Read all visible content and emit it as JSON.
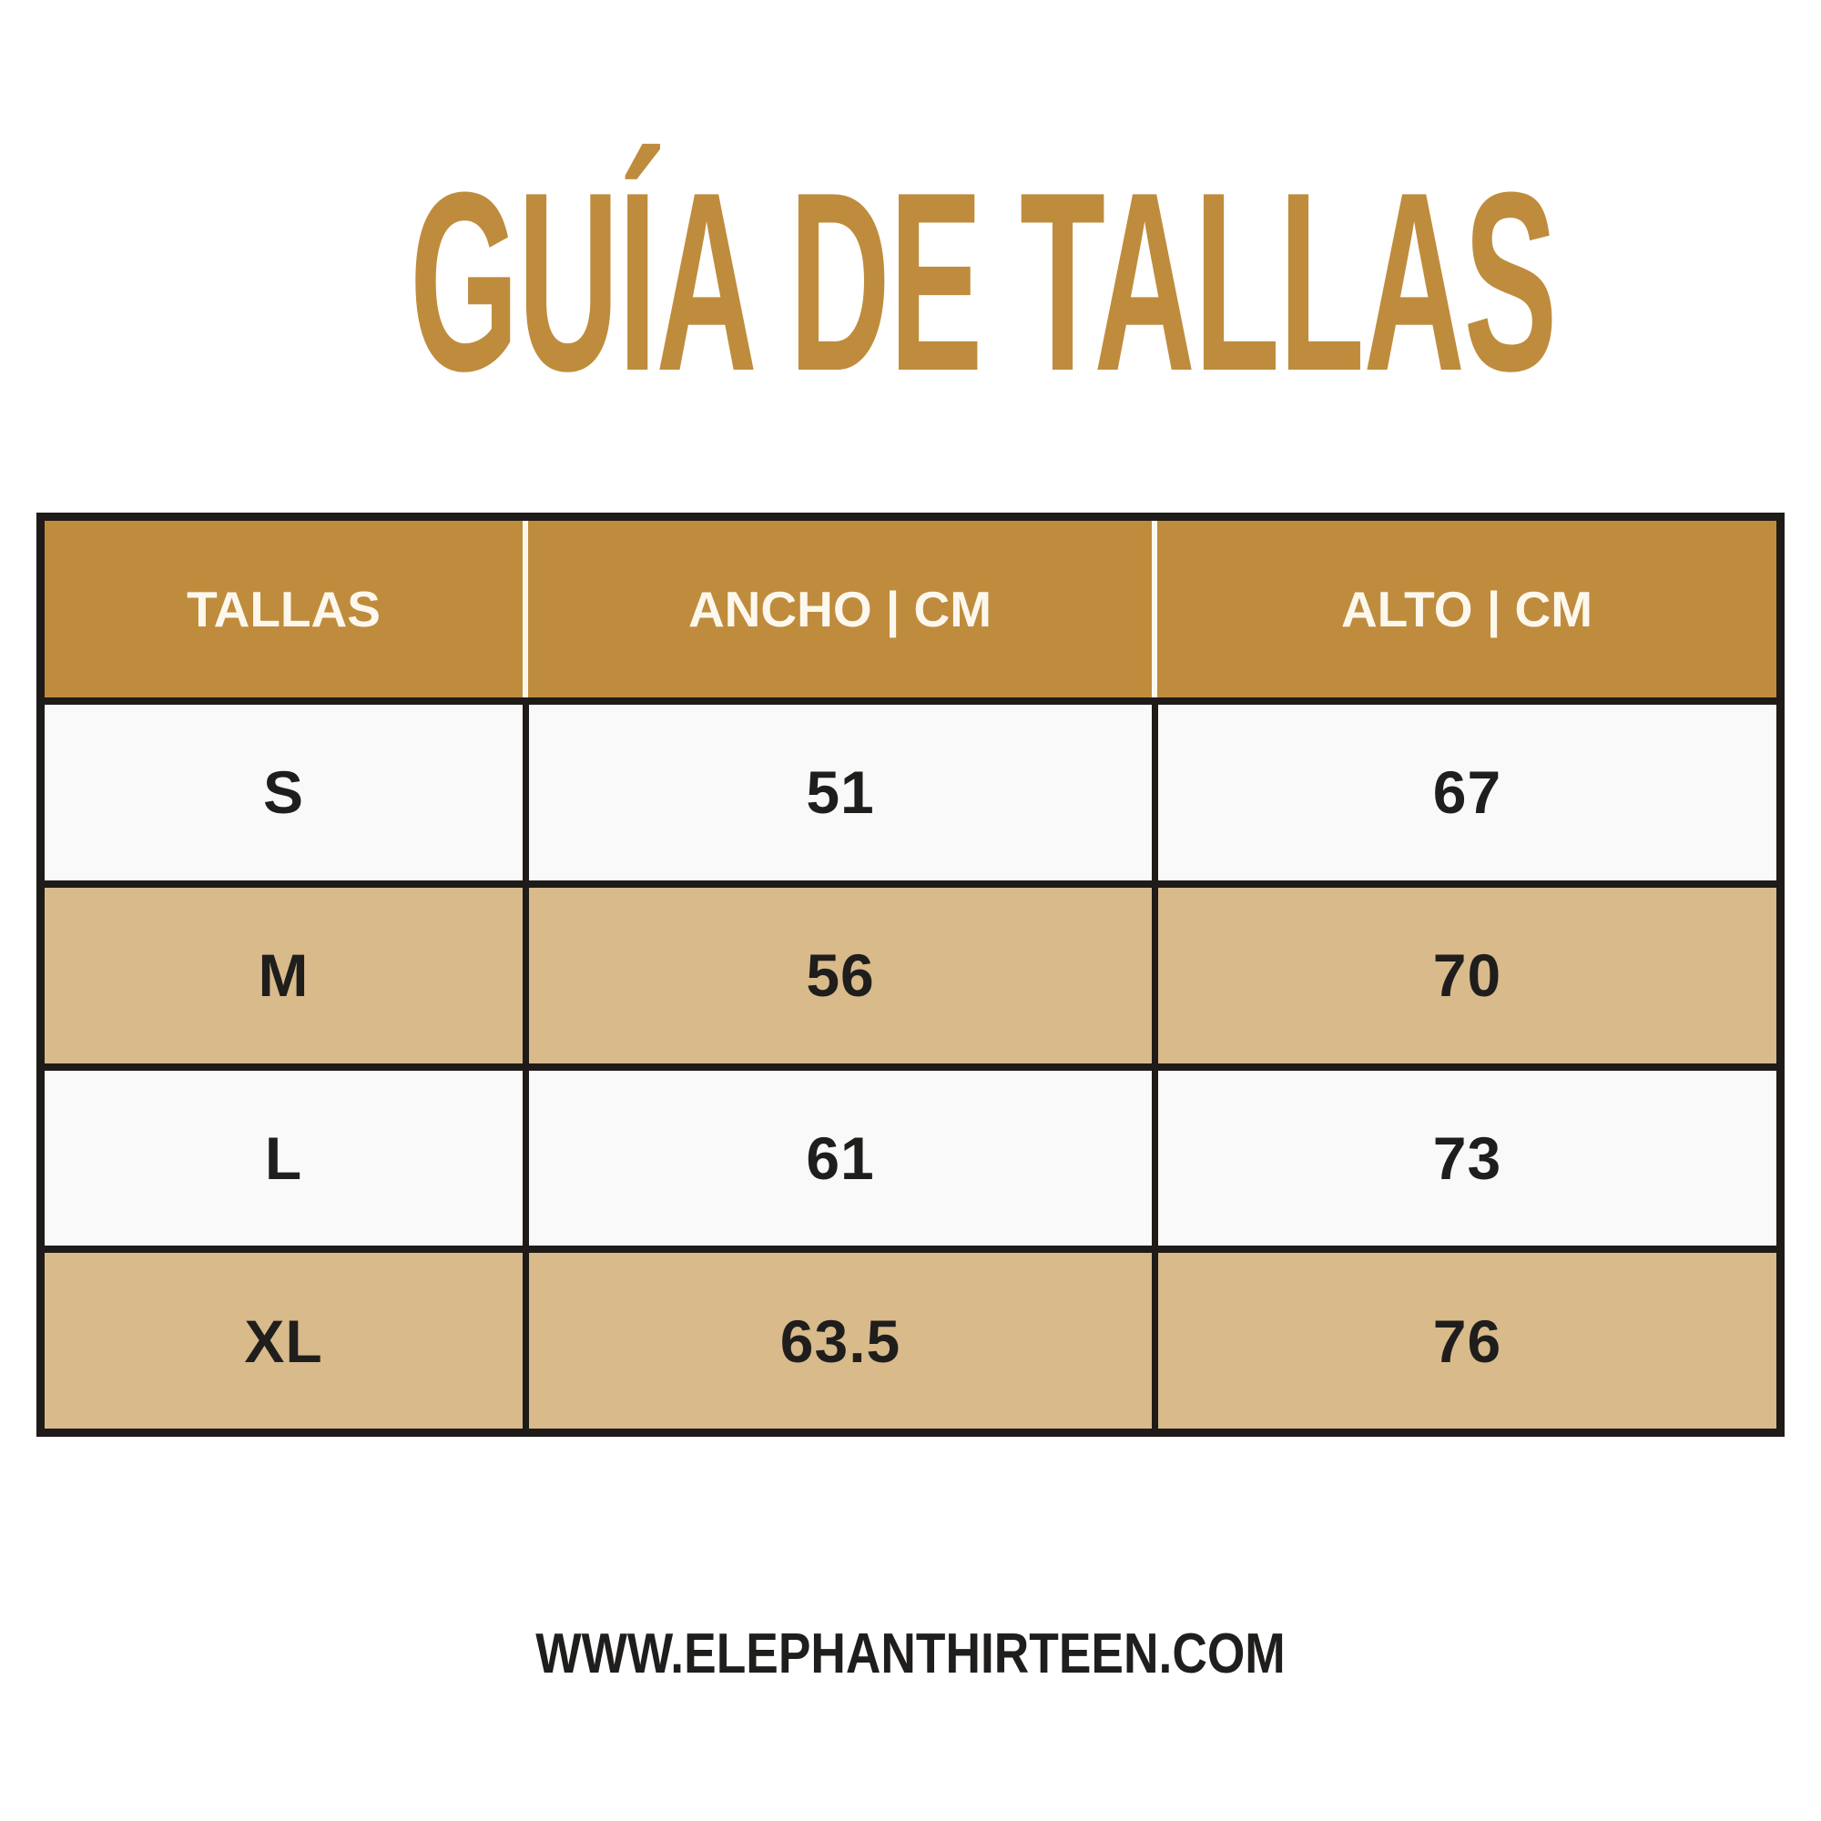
{
  "page": {
    "title": "GUÍA DE TALLAS",
    "footer_url": "WWW.ELEPHANTHIRTEEN.COM"
  },
  "table": {
    "columns": [
      {
        "label": "TALLAS"
      },
      {
        "label": "ANCHO | CM"
      },
      {
        "label": "ALTO | CM"
      }
    ],
    "rows": [
      {
        "talla": "S",
        "ancho": "51",
        "alto": "67"
      },
      {
        "talla": "M",
        "ancho": "56",
        "alto": "70"
      },
      {
        "talla": "L",
        "ancho": "61",
        "alto": "73"
      },
      {
        "talla": "XL",
        "ancho": "63.5",
        "alto": "76"
      }
    ]
  },
  "chart_data": {
    "type": "table",
    "title": "GUÍA DE TALLAS",
    "columns": [
      "TALLAS",
      "ANCHO | CM",
      "ALTO | CM"
    ],
    "rows": [
      [
        "S",
        51,
        67
      ],
      [
        "M",
        56,
        70
      ],
      [
        "L",
        61,
        73
      ],
      [
        "XL",
        63.5,
        76
      ]
    ],
    "units": "cm"
  },
  "colors": {
    "gold": "#BF8C3D",
    "tan": "#D8BA8B",
    "light": "#F9F9F9",
    "dark": "#1E1B18",
    "header_text": "#FDF8EE",
    "text": "#1F1E1C",
    "background": "#FFFFFF"
  }
}
